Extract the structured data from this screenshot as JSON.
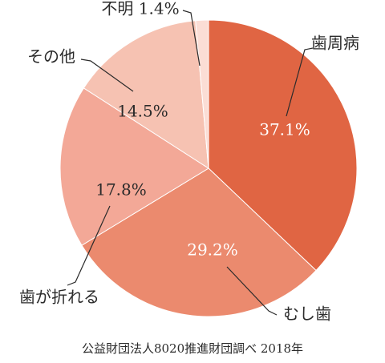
{
  "chart_data": {
    "type": "pie",
    "title": "",
    "categories": [
      "歯周病",
      "むし歯",
      "歯が折れる",
      "その他",
      "不明"
    ],
    "values": [
      37.1,
      29.2,
      17.8,
      14.5,
      1.4
    ],
    "value_labels": [
      "37.1%",
      "29.2%",
      "17.8%",
      "14.5%",
      "1.4%"
    ],
    "colors": [
      "#E06543",
      "#EB8A6E",
      "#F3A897",
      "#F6C2B2",
      "#FBDDD5"
    ],
    "start": "12 o'clock",
    "direction": "clockwise",
    "annotation_labels": {
      "unknown_combined": "不明 1.4%"
    },
    "source_note": "公益財団法人8020推進財団調べ 2018年"
  }
}
